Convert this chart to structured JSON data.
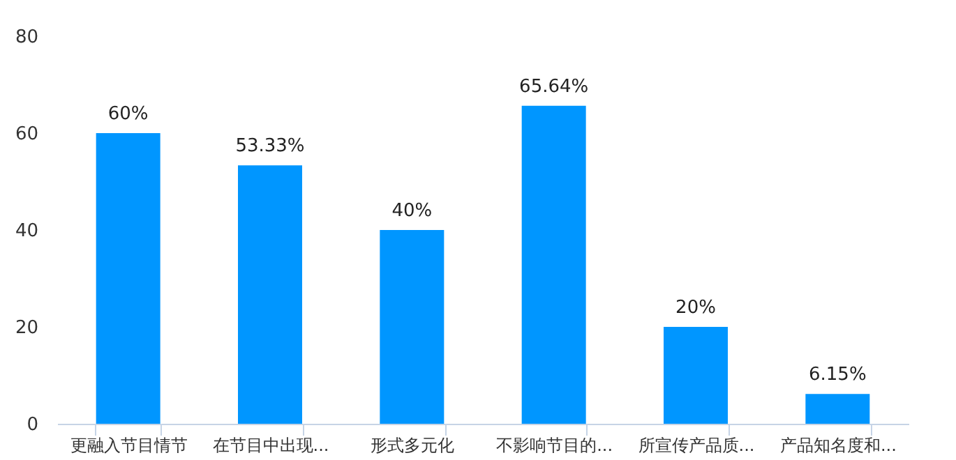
{
  "chart_data": {
    "type": "bar",
    "categories": [
      "更融入节目情节",
      "在节目中出现...",
      "形式多元化",
      "不影响节目的...",
      "所宣传产品质...",
      "产品知名度和..."
    ],
    "values": [
      60,
      53.33,
      40,
      65.64,
      20,
      6.15
    ],
    "value_labels": [
      "60%",
      "53.33%",
      "40%",
      "65.64%",
      "20%",
      "6.15%"
    ],
    "color": "#0096ff",
    "ylim": [
      0,
      80
    ],
    "yticks": [
      0,
      20,
      40,
      60,
      80
    ],
    "grid": false
  }
}
